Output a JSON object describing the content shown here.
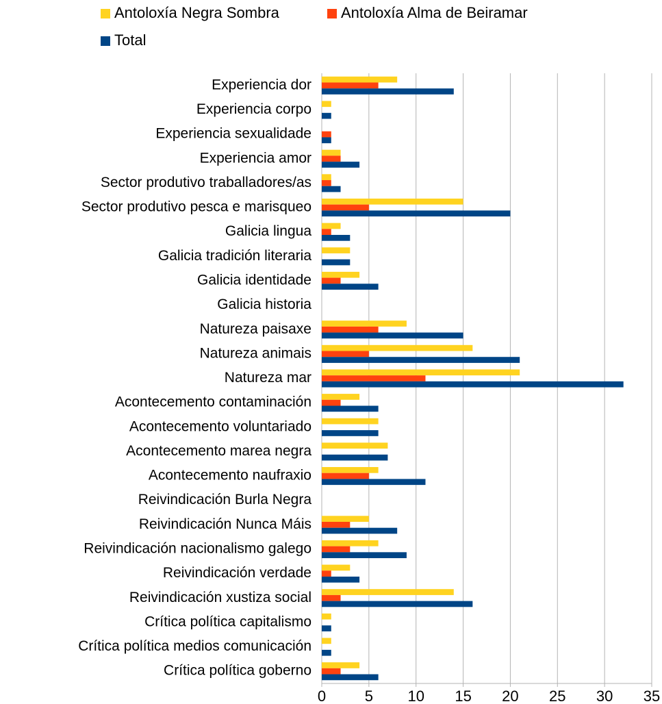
{
  "chart_data": {
    "type": "bar",
    "orientation": "horizontal",
    "categories": [
      "Experiencia dor",
      "Experiencia corpo",
      "Experiencia sexualidade",
      "Experiencia amor",
      "Sector produtivo traballadores/as",
      "Sector produtivo pesca e marisqueo",
      "Galicia lingua",
      "Galicia tradición literaria",
      "Galicia identidade",
      "Galicia historia",
      "Natureza paisaxe",
      "Natureza animais",
      "Natureza mar",
      "Acontecemento contaminación",
      "Acontecemento voluntariado",
      "Acontecemento marea negra",
      "Acontecemento naufraxio",
      "Reivindicación Burla Negra",
      "Reivindicación Nunca Máis",
      "Reivindicación nacionalismo galego",
      "Reivindicación verdade",
      "Reivindicación xustiza social",
      "Crítica política capitalismo",
      "Crítica política medios comunicación",
      "Crítica política goberno"
    ],
    "series": [
      {
        "name": "Antoloxía Negra Sombra",
        "color": "#ffd320",
        "values": [
          8,
          1,
          0,
          2,
          1,
          15,
          2,
          3,
          4,
          0,
          9,
          16,
          21,
          4,
          6,
          7,
          6,
          0,
          5,
          6,
          3,
          14,
          1,
          1,
          4
        ]
      },
      {
        "name": "Antoloxía Alma de Beiramar",
        "color": "#ff420e",
        "values": [
          6,
          0,
          1,
          2,
          1,
          5,
          1,
          0,
          2,
          0,
          6,
          5,
          11,
          2,
          0,
          0,
          5,
          0,
          3,
          3,
          1,
          2,
          0,
          0,
          2
        ]
      },
      {
        "name": "Total",
        "color": "#004586",
        "values": [
          14,
          1,
          1,
          4,
          2,
          20,
          3,
          3,
          6,
          0,
          15,
          21,
          32,
          6,
          6,
          7,
          11,
          0,
          8,
          9,
          4,
          16,
          1,
          1,
          6
        ]
      }
    ],
    "xlim": [
      0,
      35
    ],
    "xticks": [
      0,
      5,
      10,
      15,
      20,
      25,
      30,
      35
    ],
    "grid": true,
    "legend": "top"
  }
}
